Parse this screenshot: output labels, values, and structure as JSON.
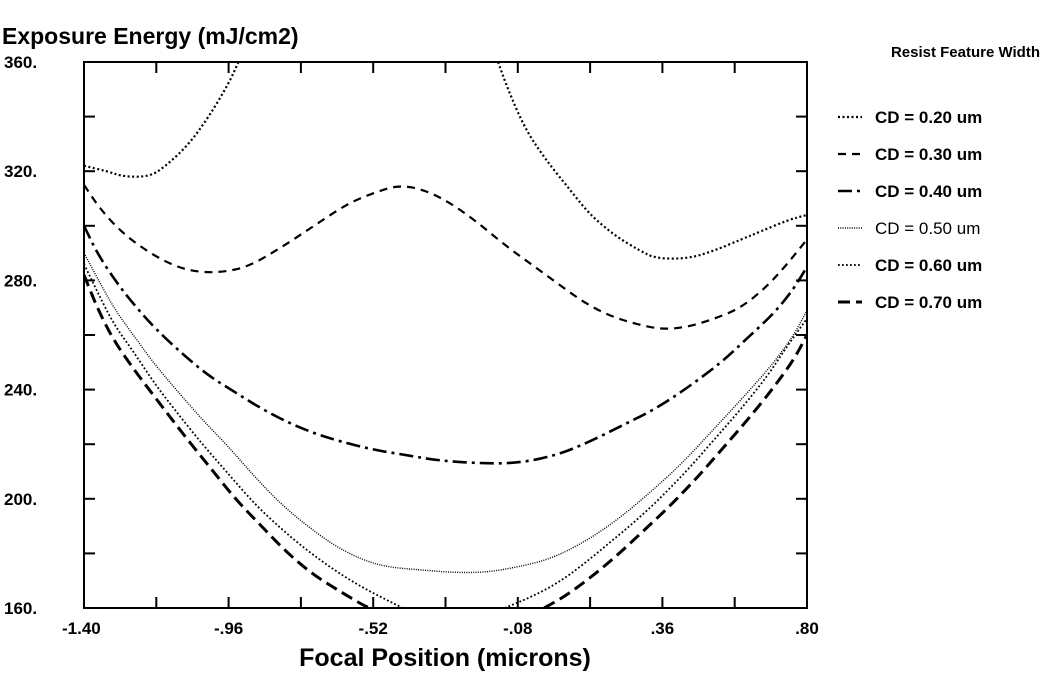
{
  "chart_data": {
    "type": "line",
    "title": "",
    "ylabel": "Exposure Energy (mJ/cm2)",
    "xlabel": "Focal Position (microns)",
    "legend_title": "Resist Feature Width",
    "legend_position": "right",
    "grid": false,
    "xlim": [
      -1.4,
      0.8
    ],
    "ylim": [
      160,
      360
    ],
    "x_ticks": [
      {
        "value": -1.4,
        "label": "-1.40"
      },
      {
        "value": -0.96,
        "label": "-.96"
      },
      {
        "value": -0.52,
        "label": "-.52"
      },
      {
        "value": -0.08,
        "label": "-.08"
      },
      {
        "value": 0.36,
        "label": ".36"
      },
      {
        "value": 0.8,
        "label": ".80"
      }
    ],
    "y_ticks": [
      {
        "value": 160,
        "label": "160."
      },
      {
        "value": 200,
        "label": "200."
      },
      {
        "value": 240,
        "label": "240."
      },
      {
        "value": 280,
        "label": "280."
      },
      {
        "value": 320,
        "label": "320."
      },
      {
        "value": 360,
        "label": "360."
      }
    ],
    "series": [
      {
        "name": "CD = 0.20 um",
        "style": "dotted",
        "segments": [
          [
            [
              -1.4,
              322
            ],
            [
              -1.33,
              320
            ],
            [
              -1.28,
              318
            ],
            [
              -1.2,
              318
            ],
            [
              -1.15,
              322
            ],
            [
              -1.08,
              330
            ],
            [
              -1.02,
              340
            ],
            [
              -0.96,
              352
            ],
            [
              -0.93,
              360
            ]
          ],
          [
            [
              -0.14,
              360
            ],
            [
              -0.11,
              350
            ],
            [
              -0.06,
              336
            ],
            [
              0.0,
              325
            ],
            [
              0.08,
              313
            ],
            [
              0.14,
              304
            ],
            [
              0.22,
              296
            ],
            [
              0.29,
              291
            ],
            [
              0.34,
              288
            ],
            [
              0.44,
              288
            ],
            [
              0.52,
              291
            ],
            [
              0.6,
              295
            ],
            [
              0.66,
              298
            ],
            [
              0.74,
              302
            ],
            [
              0.8,
              304
            ]
          ]
        ]
      },
      {
        "name": "CD = 0.30 um",
        "style": "short-dash",
        "segments": [
          [
            [
              -1.4,
              315
            ],
            [
              -1.35,
              306
            ],
            [
              -1.28,
              297
            ],
            [
              -1.2,
              290
            ],
            [
              -1.12,
              285
            ],
            [
              -1.05,
              283
            ],
            [
              -0.98,
              283
            ],
            [
              -0.9,
              285
            ],
            [
              -0.8,
              292
            ],
            [
              -0.7,
              300
            ],
            [
              -0.6,
              308
            ],
            [
              -0.52,
              312
            ],
            [
              -0.44,
              315
            ],
            [
              -0.36,
              313
            ],
            [
              -0.28,
              308
            ],
            [
              -0.2,
              301
            ],
            [
              -0.12,
              293
            ],
            [
              -0.04,
              286
            ],
            [
              0.04,
              279
            ],
            [
              0.12,
              272
            ],
            [
              0.2,
              267
            ],
            [
              0.28,
              264
            ],
            [
              0.36,
              262
            ],
            [
              0.44,
              263
            ],
            [
              0.52,
              266
            ],
            [
              0.6,
              270
            ],
            [
              0.68,
              278
            ],
            [
              0.74,
              286
            ],
            [
              0.8,
              295
            ]
          ]
        ]
      },
      {
        "name": "CD = 0.40 um",
        "style": "dash-dot",
        "segments": [
          [
            [
              -1.4,
              300
            ],
            [
              -1.36,
              290
            ],
            [
              -1.3,
              279
            ],
            [
              -1.24,
              270
            ],
            [
              -1.18,
              262
            ],
            [
              -1.1,
              253
            ],
            [
              -1.02,
              245
            ],
            [
              -0.94,
              239
            ],
            [
              -0.86,
              233
            ],
            [
              -0.78,
              228
            ],
            [
              -0.7,
              224
            ],
            [
              -0.62,
              221
            ],
            [
              -0.52,
              218
            ],
            [
              -0.42,
              216
            ],
            [
              -0.32,
              214
            ],
            [
              -0.2,
              213
            ],
            [
              -0.08,
              213
            ],
            [
              0.04,
              216
            ],
            [
              0.14,
              221
            ],
            [
              0.24,
              227
            ],
            [
              0.34,
              233
            ],
            [
              0.44,
              241
            ],
            [
              0.54,
              250
            ],
            [
              0.62,
              259
            ],
            [
              0.7,
              268
            ],
            [
              0.76,
              277
            ],
            [
              0.8,
              285
            ]
          ]
        ]
      },
      {
        "name": "CD = 0.50 um",
        "style": "fine-dot",
        "segments": [
          [
            [
              -1.4,
              290
            ],
            [
              -1.36,
              281
            ],
            [
              -1.31,
              270
            ],
            [
              -1.25,
              260
            ],
            [
              -1.19,
              250
            ],
            [
              -1.12,
              240
            ],
            [
              -1.04,
              229
            ],
            [
              -0.96,
              219
            ],
            [
              -0.88,
              208
            ],
            [
              -0.8,
              198
            ],
            [
              -0.72,
              190
            ],
            [
              -0.64,
              183
            ],
            [
              -0.56,
              178
            ],
            [
              -0.48,
              175
            ],
            [
              -0.38,
              174
            ],
            [
              -0.28,
              173
            ],
            [
              -0.18,
              173
            ],
            [
              -0.08,
              175
            ],
            [
              0.02,
              178
            ],
            [
              0.12,
              184
            ],
            [
              0.22,
              192
            ],
            [
              0.32,
              202
            ],
            [
              0.42,
              213
            ],
            [
              0.52,
              226
            ],
            [
              0.62,
              239
            ],
            [
              0.7,
              250
            ],
            [
              0.76,
              260
            ],
            [
              0.8,
              269
            ]
          ]
        ]
      },
      {
        "name": "CD = 0.60 um",
        "style": "medium-dot",
        "segments": [
          [
            [
              -1.4,
              286
            ],
            [
              -1.36,
              276
            ],
            [
              -1.31,
              264
            ],
            [
              -1.25,
              254
            ],
            [
              -1.19,
              243
            ],
            [
              -1.12,
              232
            ],
            [
              -1.04,
              220
            ],
            [
              -0.96,
              209
            ],
            [
              -0.88,
              198
            ],
            [
              -0.8,
              189
            ],
            [
              -0.72,
              181
            ],
            [
              -0.64,
              174
            ],
            [
              -0.56,
              168
            ],
            [
              -0.48,
              163
            ],
            [
              -0.43,
              160
            ]
          ],
          [
            [
              -0.12,
              160
            ],
            [
              -0.04,
              164
            ],
            [
              0.04,
              169
            ],
            [
              0.12,
              176
            ],
            [
              0.2,
              184
            ],
            [
              0.28,
              192
            ],
            [
              0.36,
              201
            ],
            [
              0.44,
              211
            ],
            [
              0.52,
              222
            ],
            [
              0.6,
              233
            ],
            [
              0.68,
              245
            ],
            [
              0.74,
              256
            ],
            [
              0.8,
              266
            ]
          ]
        ]
      },
      {
        "name": "CD = 0.70 um",
        "style": "long-dash",
        "segments": [
          [
            [
              -1.4,
              282
            ],
            [
              -1.36,
              270
            ],
            [
              -1.31,
              258
            ],
            [
              -1.24,
              246
            ],
            [
              -1.17,
              235
            ],
            [
              -1.1,
              224
            ],
            [
              -1.02,
              212
            ],
            [
              -0.94,
              200
            ],
            [
              -0.86,
              190
            ],
            [
              -0.78,
              180
            ],
            [
              -0.7,
              172
            ],
            [
              -0.62,
              166
            ],
            [
              -0.55,
              161
            ],
            [
              -0.53,
              160
            ]
          ],
          [
            [
              0.0,
              160
            ],
            [
              0.06,
              164
            ],
            [
              0.14,
              171
            ],
            [
              0.22,
              179
            ],
            [
              0.3,
              188
            ],
            [
              0.38,
              197
            ],
            [
              0.46,
              207
            ],
            [
              0.54,
              218
            ],
            [
              0.62,
              229
            ],
            [
              0.7,
              241
            ],
            [
              0.76,
              251
            ],
            [
              0.8,
              260
            ]
          ]
        ]
      }
    ]
  }
}
